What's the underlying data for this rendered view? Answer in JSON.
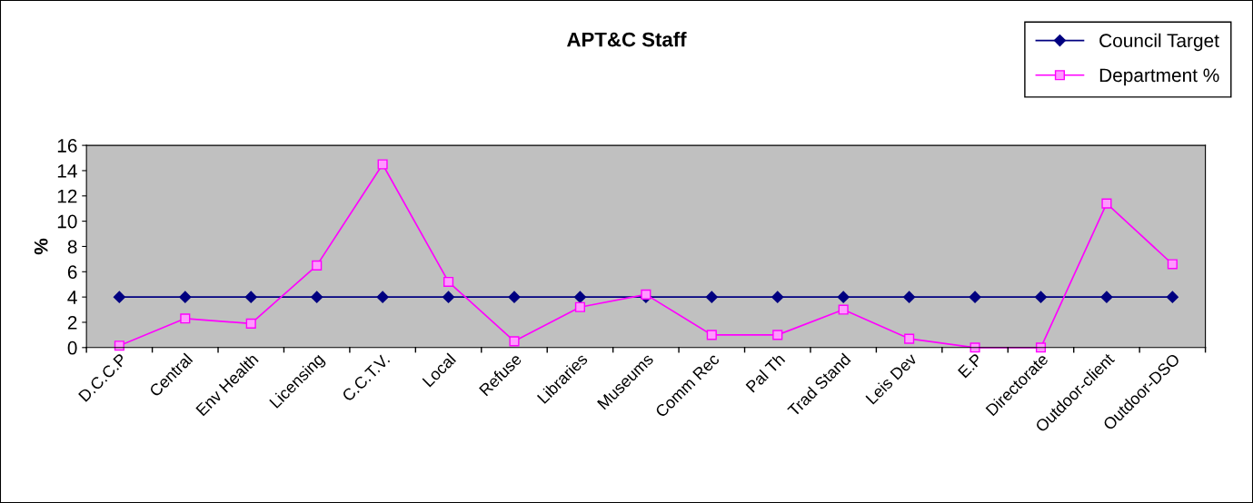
{
  "chart_data": {
    "type": "line",
    "title": "APT&C Staff",
    "ylabel": "%",
    "categories": [
      "D.C.C.P",
      "Central",
      "Env Health",
      "Licensing",
      "C.C.T.V.",
      "Local",
      "Refuse",
      "Libraries",
      "Museums",
      "Comm Rec",
      "Pal Th",
      "Trad Stand",
      "Leis Dev",
      "E.P",
      "Directorate",
      "Outdoor-client",
      "Outdoor-DSO"
    ],
    "series": [
      {
        "name": "Council Target",
        "color": "#000080",
        "marker": "diamond",
        "values": [
          4,
          4,
          4,
          4,
          4,
          4,
          4,
          4,
          4,
          4,
          4,
          4,
          4,
          4,
          4,
          4,
          4
        ]
      },
      {
        "name": "Department %",
        "color": "#ff00ff",
        "marker": "square",
        "values": [
          0.15,
          2.3,
          1.9,
          6.5,
          14.5,
          5.2,
          0.5,
          3.2,
          4.2,
          1.0,
          1.0,
          3.0,
          0.7,
          0,
          0,
          11.4,
          6.6
        ]
      }
    ],
    "ylim": [
      0,
      16
    ],
    "yticks": [
      0,
      2,
      4,
      6,
      8,
      10,
      12,
      14,
      16
    ],
    "grid": false,
    "legend": "top right",
    "line_style": "solid"
  }
}
